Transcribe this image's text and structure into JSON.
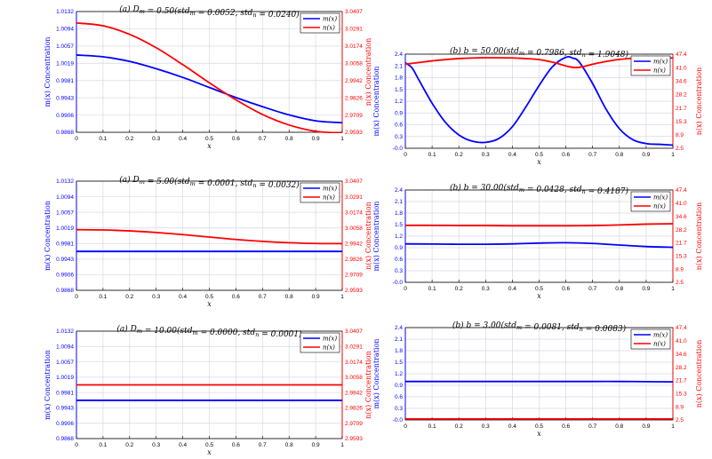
{
  "colors": {
    "m": "#0000ff",
    "n": "#ff0000",
    "grid": "#d8d8e8",
    "axis": "#000000"
  },
  "chart_data": [
    {
      "type": "line",
      "title": "(a) D_m = 0.50(std_m = 0.0052, std_n = 0.0240)",
      "xlabel": "x",
      "ylabel_left": "m(x) Concentration",
      "ylabel_right": "n(x) Concentration",
      "x_ticks": [
        "0",
        "0.1",
        "0.2",
        "0.3",
        "0.4",
        "0.5",
        "0.6",
        "0.7",
        "0.8",
        "0.9",
        "1"
      ],
      "y_left_ticks": [
        "0.9868",
        "0.9906",
        "0.9943",
        "0.9981",
        "1.0019",
        "1.0057",
        "1.0094",
        "1.0132"
      ],
      "y_right_ticks": [
        "2.9593",
        "2.9709",
        "2.9826",
        "2.9942",
        "3.0058",
        "3.0174",
        "3.0291",
        "3.0407"
      ],
      "ylim_left": [
        0.9868,
        1.0132
      ],
      "ylim_right": [
        2.9593,
        3.0407
      ],
      "legend": [
        "m(x)",
        "n(x)"
      ],
      "series": [
        {
          "name": "m(x)",
          "axis": "left",
          "x": [
            0,
            0.1,
            0.2,
            0.3,
            0.4,
            0.5,
            0.6,
            0.7,
            0.8,
            0.9,
            1
          ],
          "values": [
            1.0037,
            1.0033,
            1.0023,
            1.0007,
            0.9988,
            0.9966,
            0.9944,
            0.9924,
            0.9906,
            0.9893,
            0.9889
          ]
        },
        {
          "name": "n(x)",
          "axis": "right",
          "x": [
            0,
            0.1,
            0.2,
            0.3,
            0.4,
            0.5,
            0.6,
            0.7,
            0.8,
            0.9,
            1
          ],
          "values": [
            3.033,
            3.0311,
            3.0253,
            3.0163,
            3.0049,
            2.9927,
            2.9812,
            2.9713,
            2.9642,
            2.96,
            2.9588
          ]
        }
      ]
    },
    {
      "type": "line",
      "title": "(a) D_m = 5.00(std_m = 0.0001, std_n = 0.0032)",
      "xlabel": "x",
      "ylabel_left": "m(x) Concentration",
      "ylabel_right": "n(x) Concentration",
      "x_ticks": [
        "0",
        "0.1",
        "0.2",
        "0.3",
        "0.4",
        "0.5",
        "0.6",
        "0.7",
        "0.8",
        "0.9",
        "1"
      ],
      "y_left_ticks": [
        "0.9868",
        "0.9906",
        "0.9943",
        "0.9981",
        "1.0019",
        "1.0057",
        "1.0094",
        "1.0132"
      ],
      "y_right_ticks": [
        "2.9593",
        "2.9709",
        "2.9826",
        "2.9942",
        "3.0058",
        "3.0174",
        "3.0291",
        "3.0407"
      ],
      "ylim_left": [
        0.9868,
        1.0132
      ],
      "ylim_right": [
        2.9593,
        3.0407
      ],
      "legend": [
        "m(x)",
        "n(x)"
      ],
      "series": [
        {
          "name": "m(x)",
          "axis": "left",
          "x": [
            0,
            0.1,
            0.2,
            0.3,
            0.4,
            0.5,
            0.6,
            0.7,
            0.8,
            0.9,
            1
          ],
          "values": [
            0.9962,
            0.9962,
            0.9962,
            0.9962,
            0.9962,
            0.9962,
            0.9962,
            0.9962,
            0.9962,
            0.9962,
            0.9962
          ]
        },
        {
          "name": "n(x)",
          "axis": "right",
          "x": [
            0,
            0.1,
            0.2,
            0.3,
            0.4,
            0.5,
            0.6,
            0.7,
            0.8,
            0.9,
            1
          ],
          "values": [
            3.0045,
            3.0043,
            3.0036,
            3.0024,
            3.0008,
            2.999,
            2.9972,
            2.9958,
            2.9948,
            2.9942,
            2.9941
          ]
        }
      ]
    },
    {
      "type": "line",
      "title": "(a) D_m = 10.00(std_m = 0.0000, std_n = 0.0001)",
      "xlabel": "x",
      "ylabel_left": "m(x) Concentration",
      "ylabel_right": "n(x) Concentration",
      "x_ticks": [
        "0",
        "0.1",
        "0.2",
        "0.3",
        "0.4",
        "0.5",
        "0.6",
        "0.7",
        "0.8",
        "0.9",
        "1"
      ],
      "y_left_ticks": [
        "0.9868",
        "0.9906",
        "0.9943",
        "0.9981",
        "1.0019",
        "1.0057",
        "1.0094",
        "1.0132"
      ],
      "y_right_ticks": [
        "2.9593",
        "2.9709",
        "2.9826",
        "2.9942",
        "3.0058",
        "3.0174",
        "3.0291",
        "3.0407"
      ],
      "ylim_left": [
        0.9868,
        1.0132
      ],
      "ylim_right": [
        2.9593,
        3.0407
      ],
      "legend": [
        "m(x)",
        "n(x)"
      ],
      "series": [
        {
          "name": "m(x)",
          "axis": "left",
          "x": [
            0,
            0.1,
            0.2,
            0.3,
            0.4,
            0.5,
            0.6,
            0.7,
            0.8,
            0.9,
            1
          ],
          "values": [
            0.9962,
            0.9962,
            0.9962,
            0.9962,
            0.9962,
            0.9962,
            0.9962,
            0.9962,
            0.9962,
            0.9962,
            0.9962
          ]
        },
        {
          "name": "n(x)",
          "axis": "right",
          "x": [
            0,
            0.1,
            0.2,
            0.3,
            0.4,
            0.5,
            0.6,
            0.7,
            0.8,
            0.9,
            1
          ],
          "values": [
            3.0,
            3.0,
            3.0,
            3.0,
            3.0,
            3.0,
            3.0,
            3.0,
            3.0,
            3.0,
            3.0
          ]
        }
      ]
    },
    {
      "type": "line",
      "title": "(b) b = 50.00(std_m = 0.7986, std_n = 1.9048)",
      "xlabel": "x",
      "ylabel_left": "m(x) Concentration",
      "ylabel_right": "n(x) Concentration",
      "x_ticks": [
        "0",
        "0.1",
        "0.2",
        "0.3",
        "0.4",
        "0.5",
        "0.6",
        "0.7",
        "0.8",
        "0.9",
        "1"
      ],
      "y_left_ticks": [
        "-0.0",
        "0.3",
        "0.6",
        "0.9",
        "1.2",
        "1.5",
        "1.8",
        "2.1",
        "2.4"
      ],
      "y_right_ticks": [
        "2.5",
        "8.9",
        "15.3",
        "21.7",
        "28.2",
        "34.6",
        "41.0",
        "47.4"
      ],
      "ylim_left": [
        0,
        2.4
      ],
      "ylim_right": [
        2.5,
        47.4
      ],
      "legend": [
        "m(x)",
        "n(x)"
      ],
      "series": [
        {
          "name": "m(x)",
          "axis": "left",
          "x": [
            0,
            0.025,
            0.05,
            0.1,
            0.15,
            0.2,
            0.25,
            0.3,
            0.35,
            0.4,
            0.45,
            0.5,
            0.55,
            0.6,
            0.625,
            0.65,
            0.7,
            0.75,
            0.8,
            0.85,
            0.9,
            0.95,
            1
          ],
          "values": [
            2.18,
            2.05,
            1.75,
            1.15,
            0.66,
            0.34,
            0.18,
            0.15,
            0.25,
            0.55,
            1.05,
            1.6,
            2.08,
            2.32,
            2.3,
            2.2,
            1.65,
            1.0,
            0.5,
            0.22,
            0.12,
            0.1,
            0.08
          ]
        },
        {
          "name": "n(x)",
          "axis": "right",
          "x": [
            0,
            0.05,
            0.1,
            0.2,
            0.3,
            0.4,
            0.45,
            0.5,
            0.55,
            0.6,
            0.63,
            0.66,
            0.7,
            0.75,
            0.8,
            0.85,
            0.9,
            0.95,
            1
          ],
          "values": [
            42.6,
            43.4,
            44.2,
            45.3,
            45.7,
            45.6,
            45.3,
            44.8,
            43.6,
            41.8,
            41.0,
            41.3,
            42.6,
            43.9,
            44.9,
            45.4,
            45.6,
            45.6,
            45.6
          ]
        }
      ]
    },
    {
      "type": "line",
      "title": "(b) b = 30.00(std_m = 0.0428, std_n = 0.4187)",
      "xlabel": "x",
      "ylabel_left": "m(x) Concentration",
      "ylabel_right": "n(x) Concentration",
      "x_ticks": [
        "0",
        "0.1",
        "0.2",
        "0.3",
        "0.4",
        "0.5",
        "0.6",
        "0.7",
        "0.8",
        "0.9",
        "1"
      ],
      "y_left_ticks": [
        "-0.0",
        "0.3",
        "0.6",
        "0.9",
        "1.2",
        "1.5",
        "1.8",
        "2.1",
        "2.4"
      ],
      "y_right_ticks": [
        "2.5",
        "8.9",
        "15.3",
        "21.7",
        "28.2",
        "34.6",
        "41.0",
        "47.4"
      ],
      "ylim_left": [
        0,
        2.4
      ],
      "ylim_right": [
        2.5,
        47.4
      ],
      "legend": [
        "m(x)",
        "n(x)"
      ],
      "series": [
        {
          "name": "m(x)",
          "axis": "left",
          "x": [
            0,
            0.1,
            0.2,
            0.3,
            0.4,
            0.5,
            0.6,
            0.7,
            0.8,
            0.9,
            1
          ],
          "values": [
            1.0,
            0.995,
            0.99,
            0.99,
            1.0,
            1.02,
            1.03,
            1.01,
            0.97,
            0.93,
            0.91
          ]
        },
        {
          "name": "n(x)",
          "axis": "right",
          "x": [
            0,
            0.1,
            0.2,
            0.3,
            0.4,
            0.5,
            0.6,
            0.7,
            0.8,
            0.9,
            1
          ],
          "values": [
            30.2,
            30.2,
            30.1,
            30.1,
            30.0,
            30.0,
            30.0,
            30.1,
            30.4,
            30.8,
            31.0
          ]
        }
      ]
    },
    {
      "type": "line",
      "title": "(b) b = 3.00(std_m = 0.0081, std_n = 0.0083)",
      "xlabel": "x",
      "ylabel_left": "m(x) Concentration",
      "ylabel_right": "n(x) Concentration",
      "x_ticks": [
        "0",
        "0.1",
        "0.2",
        "0.3",
        "0.4",
        "0.5",
        "0.6",
        "0.7",
        "0.8",
        "0.9",
        "1"
      ],
      "y_left_ticks": [
        "-0.0",
        "0.3",
        "0.6",
        "0.9",
        "1.2",
        "1.5",
        "1.8",
        "2.1",
        "2.4"
      ],
      "y_right_ticks": [
        "2.5",
        "8.9",
        "15.3",
        "21.7",
        "28.2",
        "34.6",
        "41.0",
        "47.4"
      ],
      "ylim_left": [
        0,
        2.4
      ],
      "ylim_right": [
        2.5,
        47.4
      ],
      "legend": [
        "m(x)",
        "n(x)"
      ],
      "series": [
        {
          "name": "m(x)",
          "axis": "left",
          "x": [
            0,
            0.1,
            0.2,
            0.3,
            0.4,
            0.5,
            0.6,
            0.7,
            0.8,
            0.9,
            1
          ],
          "values": [
            1.0,
            1.0,
            1.0,
            1.0,
            1.0,
            1.0,
            1.0,
            1.0,
            1.0,
            0.995,
            0.99
          ]
        },
        {
          "name": "n(x)",
          "axis": "right",
          "x": [
            0,
            0.1,
            0.2,
            0.3,
            0.4,
            0.5,
            0.6,
            0.7,
            0.8,
            0.9,
            1
          ],
          "values": [
            3.0,
            3.0,
            3.0,
            3.0,
            3.0,
            3.0,
            3.0,
            3.0,
            3.0,
            3.0,
            3.0
          ]
        }
      ]
    }
  ]
}
